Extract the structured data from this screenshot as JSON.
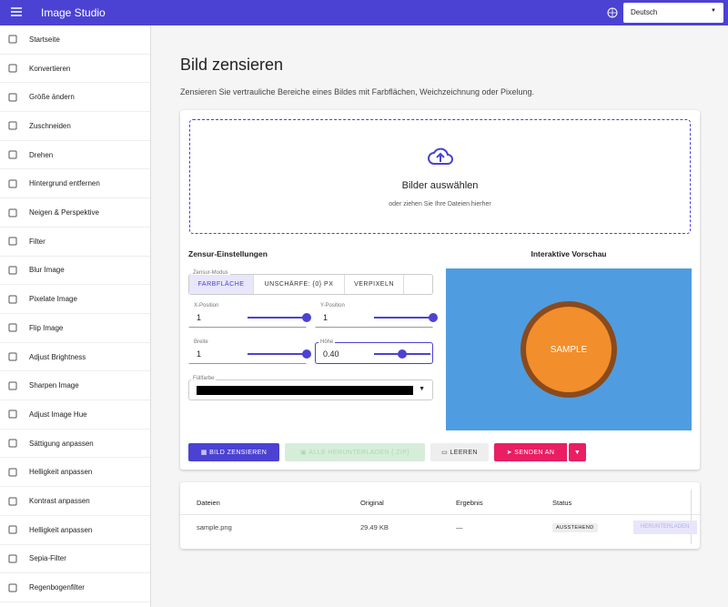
{
  "app_bar": {
    "title": "Image Studio",
    "language": "Deutsch"
  },
  "sidebar": {
    "items": [
      "Startseite",
      "Konvertieren",
      "Größe ändern",
      "Zuschneiden",
      "Drehen",
      "Hintergrund entfernen",
      "Neigen & Perspektive",
      "Filter",
      "Blur Image",
      "Pixelate Image",
      "Flip Image",
      "Adjust Brightness",
      "Sharpen Image",
      "Adjust Image Hue",
      "Sättigung anpassen",
      "Helligkeit anpassen",
      "Kontrast anpassen",
      "Helligkeit anpassen",
      "Sepia-Filter",
      "Regenbogenfilter"
    ]
  },
  "page": {
    "title": "Bild zensieren",
    "description": "Zensieren Sie vertrauliche Bereiche eines Bildes mit Farbflächen, Weichzeichnung oder Pixelung."
  },
  "dropzone": {
    "title": "Bilder auswählen",
    "hint": "oder ziehen Sie Ihre Dateien hierher"
  },
  "settings": {
    "heading": "Zensur-Einstellungen",
    "mode_label": "Zensur-Modus",
    "modes": [
      "FARBFLÄCHE",
      "UNSCHÄRFE: {0} PX",
      "VERPIXELN"
    ],
    "fields": [
      {
        "label": "X-Position",
        "value": "1"
      },
      {
        "label": "Y-Position",
        "value": "1"
      },
      {
        "label": "Breite",
        "value": "1"
      },
      {
        "label": "Höhe",
        "value": "0.40"
      }
    ],
    "color_label": "Füllfarbe"
  },
  "preview": {
    "heading": "Interaktive Vorschau",
    "sample": "SAMPLE"
  },
  "actions": [
    "BILD ZENSIEREN",
    "ALLE HERUNTERLADEN (.ZIP)",
    "LEEREN",
    "SENDEN AN"
  ],
  "table": {
    "headers": [
      "Dateien",
      "Original",
      "Ergebnis",
      "Status"
    ],
    "rows": [
      [
        "sample.png",
        "29.49 KB",
        "—",
        "AUSSTEHEND",
        "HERUNTERLADEN"
      ]
    ]
  }
}
